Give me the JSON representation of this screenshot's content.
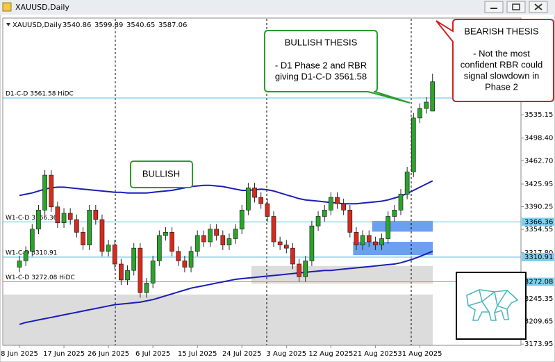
{
  "window": {
    "title": "XAUUSD,Daily"
  },
  "chart_data": {
    "type": "candlestick",
    "symbol": "XAUUSD,Daily",
    "categories": [
      "8 Jun 2025",
      null,
      null,
      null,
      null,
      null,
      null,
      "17 Jun 2025",
      null,
      null,
      null,
      null,
      null,
      null,
      "26 Jun 2025",
      null,
      null,
      null,
      null,
      null,
      null,
      "6 Jul 2025",
      null,
      null,
      null,
      null,
      null,
      null,
      "15 Jul 2025",
      null,
      null,
      null,
      null,
      null,
      null,
      "24 Jul 2025",
      null,
      null,
      null,
      null,
      null,
      null,
      "3 Aug 2025",
      null,
      null,
      null,
      null,
      null,
      null,
      "12 Aug 2025",
      null,
      null,
      null,
      null,
      null,
      null,
      "21 Aug 2025",
      null,
      null,
      null,
      null,
      null,
      null,
      "31 Aug 2025",
      null,
      null
    ],
    "open": [
      3295,
      3305,
      3320,
      3355,
      3385,
      3440,
      3390,
      3365,
      3380,
      3370,
      3350,
      3330,
      3385,
      3370,
      3320,
      3330,
      3300,
      3275,
      3290,
      3325,
      3255,
      3270,
      3305,
      3345,
      3350,
      3320,
      3305,
      3295,
      3320,
      3345,
      3335,
      3355,
      3345,
      3330,
      3340,
      3355,
      3385,
      3420,
      3405,
      3395,
      3375,
      3335,
      3330,
      3325,
      3300,
      3280,
      3305,
      3360,
      3375,
      3385,
      3405,
      3395,
      3385,
      3350,
      3330,
      3345,
      3335,
      3330,
      3340,
      3375,
      3385,
      3410,
      3445,
      3530,
      3545,
      3540.86
    ],
    "high": [
      3313,
      3328,
      3363,
      3393,
      3448,
      3448,
      3398,
      3388,
      3388,
      3378,
      3358,
      3393,
      3393,
      3378,
      3338,
      3338,
      3308,
      3298,
      3333,
      3333,
      3278,
      3313,
      3353,
      3358,
      3358,
      3328,
      3313,
      3328,
      3353,
      3353,
      3363,
      3363,
      3353,
      3348,
      3363,
      3393,
      3428,
      3428,
      3413,
      3403,
      3383,
      3343,
      3338,
      3333,
      3308,
      3313,
      3368,
      3383,
      3393,
      3413,
      3413,
      3403,
      3393,
      3358,
      3353,
      3353,
      3343,
      3348,
      3383,
      3393,
      3418,
      3453,
      3538,
      3553,
      3563,
      3599.89
    ],
    "low": [
      3287,
      3297,
      3312,
      3347,
      3377,
      3382,
      3357,
      3357,
      3362,
      3342,
      3322,
      3322,
      3362,
      3312,
      3312,
      3292,
      3267,
      3267,
      3282,
      3247,
      3247,
      3262,
      3297,
      3337,
      3312,
      3297,
      3287,
      3287,
      3312,
      3327,
      3327,
      3337,
      3322,
      3322,
      3332,
      3347,
      3377,
      3397,
      3387,
      3367,
      3327,
      3322,
      3317,
      3292,
      3272,
      3272,
      3297,
      3352,
      3367,
      3377,
      3387,
      3377,
      3342,
      3322,
      3322,
      3327,
      3322,
      3322,
      3332,
      3367,
      3377,
      3402,
      3437,
      3522,
      3537,
      3540.65
    ],
    "close": [
      3305,
      3320,
      3355,
      3385,
      3440,
      3390,
      3365,
      3380,
      3370,
      3350,
      3330,
      3385,
      3370,
      3320,
      3330,
      3300,
      3275,
      3290,
      3325,
      3255,
      3270,
      3305,
      3345,
      3350,
      3320,
      3305,
      3295,
      3320,
      3345,
      3335,
      3355,
      3345,
      3330,
      3340,
      3355,
      3385,
      3420,
      3405,
      3395,
      3375,
      3335,
      3330,
      3325,
      3300,
      3280,
      3305,
      3360,
      3375,
      3385,
      3405,
      3395,
      3385,
      3350,
      3330,
      3345,
      3335,
      3330,
      3340,
      3375,
      3385,
      3410,
      3445,
      3530,
      3545,
      3555,
      3587.06
    ],
    "up_color": "#2aa52a",
    "down_color": "#d8291c",
    "ylim": [
      3172,
      3683
    ],
    "yticks": [
      3535.15,
      {
        "value": 3498.4,
        "label": "3498.40"
      },
      {
        "value": 3462.7,
        "label": "3462.70"
      },
      3425.95,
      3390.25,
      3354.55,
      {
        "value": 3317.8,
        "label": "3317.80"
      },
      3245.35,
      3209.65,
      3173.95
    ],
    "bands": [
      {
        "color": "#1c1cb8",
        "values": [
          3408,
          3410,
          3412,
          3415,
          3418,
          3420,
          3421,
          3421,
          3420,
          3419,
          3418,
          3417,
          3416,
          3415,
          3414,
          3413,
          3413,
          3412,
          3412,
          3412,
          3412,
          3413,
          3414,
          3415,
          3416,
          3418,
          3420,
          3422,
          3423,
          3424,
          3424,
          3423,
          3422,
          3420,
          3418,
          3416,
          3416,
          3417,
          3418,
          3417,
          3415,
          3412,
          3409,
          3406,
          3403,
          3401,
          3400,
          3399,
          3398,
          3397,
          3396,
          3395,
          3395,
          3395,
          3396,
          3397,
          3398,
          3399,
          3401,
          3404,
          3407,
          3411,
          3416,
          3421,
          3426,
          3431
        ]
      },
      {
        "color": "#1c1cb8",
        "values": [
          3205,
          3208,
          3210,
          3212,
          3214,
          3216,
          3218,
          3220,
          3222,
          3224,
          3226,
          3228,
          3230,
          3232,
          3234,
          3236,
          3237,
          3238,
          3239,
          3240,
          3242,
          3244,
          3247,
          3250,
          3253,
          3256,
          3259,
          3262,
          3264,
          3266,
          3268,
          3270,
          3272,
          3274,
          3276,
          3277,
          3278,
          3279,
          3280,
          3281,
          3282,
          3283,
          3284,
          3285,
          3286,
          3287,
          3288,
          3289,
          3290,
          3290,
          3291,
          3292,
          3293,
          3294,
          3295,
          3296,
          3297,
          3298,
          3299,
          3300,
          3302,
          3305,
          3308,
          3312,
          3316,
          3320
        ]
      }
    ],
    "levels": [
      {
        "label": "D1-C-D 3561.58 HiDC",
        "value": 3561.58,
        "axis_tag": false
      },
      {
        "label": "W1-C-D 3366.36",
        "value": 3366.36,
        "axis_tag": true
      },
      {
        "label": "W1-C-D 3310.91",
        "value": 3310.91,
        "axis_tag": true
      },
      {
        "label": "W1-C-D 3272.08 HiDC",
        "value": 3272.08,
        "axis_tag": true
      }
    ],
    "zones": [
      {
        "range": [
          3172,
          3252
        ],
        "start": 0,
        "color": "#dcdcdc"
      },
      {
        "range": [
          3269,
          3297
        ],
        "start": 37,
        "color": "#dcdcdc"
      },
      {
        "range": [
          3351,
          3368
        ],
        "start": 56,
        "color": "#6b9ff0"
      },
      {
        "range": [
          3314,
          3335
        ],
        "start": 53,
        "color": "#6b9ff0"
      }
    ],
    "annotations": {
      "bullish_label": "BULLISH",
      "bullish_thesis": [
        "BULLISH THESIS",
        "- D1 Phase 2 and RBR",
        "giving D1-C-D 3561.58"
      ],
      "bearish_thesis": [
        "BEARISH THESIS",
        "- Not the most",
        "confident RBR could",
        "signal slowdown in",
        "Phase 2"
      ]
    }
  }
}
